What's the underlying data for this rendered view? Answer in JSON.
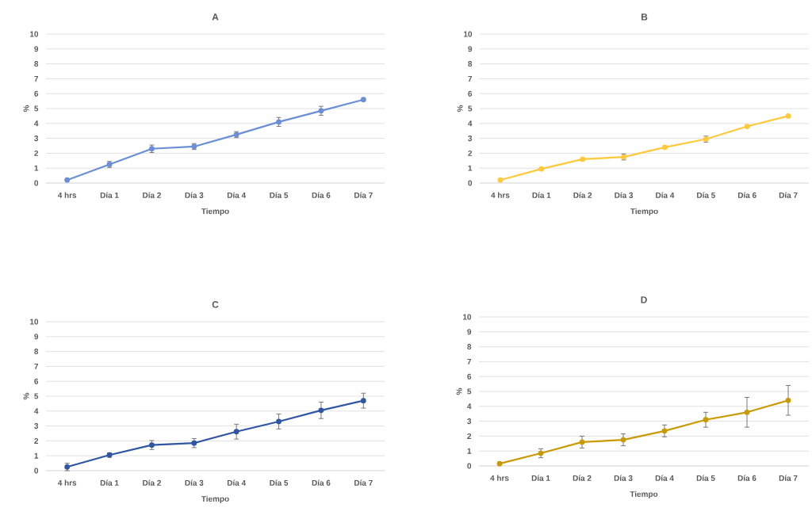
{
  "chart_data": [
    {
      "type": "line",
      "title": "A",
      "xlabel": "Tiempo",
      "ylabel": "%",
      "categories": [
        "4 hrs",
        "Día 1",
        "Día 2",
        "Día 3",
        "Día 4",
        "Día 5",
        "Día 6",
        "Día 7"
      ],
      "values": [
        0.2,
        1.25,
        2.3,
        2.45,
        3.25,
        4.1,
        4.85,
        5.6
      ],
      "errors": [
        null,
        0.2,
        0.25,
        0.2,
        0.2,
        0.3,
        0.3,
        null
      ],
      "color": "#6a8fd6",
      "ylim": [
        0,
        10
      ],
      "yticks": [
        0,
        1,
        2,
        3,
        4,
        5,
        6,
        7,
        8,
        9,
        10
      ],
      "grid": "y",
      "marker": "circle"
    },
    {
      "type": "line",
      "title": "B",
      "xlabel": "Tiempo",
      "ylabel": "%",
      "categories": [
        "4 hrs",
        "Día 1",
        "Día 2",
        "Día 3",
        "Día 4",
        "Día 5",
        "Día 6",
        "Día 7"
      ],
      "values": [
        0.2,
        0.95,
        1.6,
        1.75,
        2.4,
        2.95,
        3.8,
        4.5
      ],
      "errors": [
        null,
        null,
        null,
        0.2,
        null,
        0.2,
        null,
        null
      ],
      "color": "#ffc93c",
      "ylim": [
        0,
        10
      ],
      "yticks": [
        0,
        1,
        2,
        3,
        4,
        5,
        6,
        7,
        8,
        9,
        10
      ],
      "grid": "y",
      "marker": "circle"
    },
    {
      "type": "line",
      "title": "C",
      "xlabel": "Tiempo",
      "ylabel": "%",
      "categories": [
        "4 hrs",
        "Día 1",
        "Día 2",
        "Día 3",
        "Día 4",
        "Día 5",
        "Día 6",
        "Día 7"
      ],
      "values": [
        0.25,
        1.05,
        1.72,
        1.85,
        2.62,
        3.3,
        4.05,
        4.7
      ],
      "errors": [
        0.25,
        0.15,
        0.3,
        0.3,
        0.5,
        0.5,
        0.55,
        0.5
      ],
      "color": "#2f55a4",
      "ylim": [
        0,
        10
      ],
      "yticks": [
        0,
        1,
        2,
        3,
        4,
        5,
        6,
        7,
        8,
        9,
        10
      ],
      "grid": "y",
      "marker": "circle"
    },
    {
      "type": "line",
      "title": "D",
      "xlabel": "Tiempo",
      "ylabel": "%",
      "categories": [
        "4 hrs",
        "Día 1",
        "Día 2",
        "Día 3",
        "Día 4",
        "Día 5",
        "Día 6",
        "Día 7"
      ],
      "values": [
        0.15,
        0.85,
        1.6,
        1.75,
        2.35,
        3.1,
        3.6,
        4.4
      ],
      "errors": [
        null,
        0.3,
        0.4,
        0.4,
        0.4,
        0.5,
        1.0,
        1.0
      ],
      "color": "#c99a06",
      "ylim": [
        0,
        10
      ],
      "yticks": [
        0,
        1,
        2,
        3,
        4,
        5,
        6,
        7,
        8,
        9,
        10
      ],
      "grid": "y",
      "marker": "circle"
    }
  ]
}
